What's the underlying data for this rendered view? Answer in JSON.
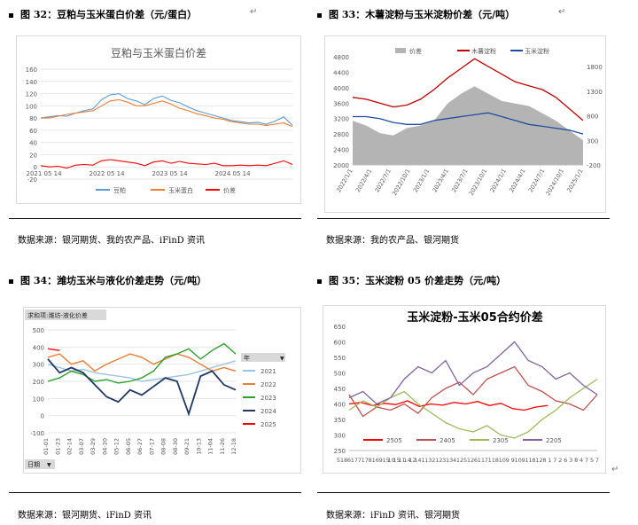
{
  "fig32": {
    "caption": "图 32：豆粕与玉米蛋白价差（元/蛋白）",
    "source": "数据来源：银河期货、我的农产品、iFinD 资讯",
    "chart_data": {
      "type": "line",
      "title": "豆粕与玉米蛋白价差",
      "ylim": [
        -20,
        160
      ],
      "yticks": [
        "160",
        "140",
        "120",
        "100",
        "80",
        "60",
        "40",
        "20",
        "0",
        "-20"
      ],
      "x_ticks": [
        "2021 05 14",
        "2022 05 14",
        "2023 05 14",
        "2024 05 14"
      ],
      "series": [
        {
          "name": "豆粕",
          "color": "#5b9bd5",
          "values": [
            80,
            82,
            84,
            83,
            88,
            92,
            95,
            110,
            118,
            120,
            112,
            108,
            102,
            112,
            116,
            109,
            105,
            98,
            92,
            88,
            84,
            80,
            76,
            74,
            72,
            73,
            70,
            75,
            82,
            68
          ]
        },
        {
          "name": "玉米蛋白",
          "color": "#ed7d31",
          "values": [
            80,
            80,
            83,
            86,
            88,
            90,
            92,
            100,
            108,
            110,
            106,
            100,
            100,
            104,
            108,
            103,
            96,
            92,
            87,
            84,
            80,
            78,
            74,
            72,
            70,
            70,
            68,
            70,
            72,
            66
          ]
        },
        {
          "name": "价差",
          "color": "#ff0000",
          "values": [
            2,
            0,
            1,
            -2,
            3,
            4,
            3,
            10,
            12,
            10,
            8,
            6,
            2,
            8,
            10,
            6,
            9,
            6,
            5,
            4,
            6,
            2,
            2,
            3,
            2,
            3,
            2,
            6,
            10,
            4
          ]
        }
      ]
    }
  },
  "fig33": {
    "caption": "图 33：木薯淀粉与玉米淀粉价差（元/吨）",
    "source": "数据来源：我的农产品、银河期货",
    "chart_data": {
      "type": "line",
      "legend": [
        "价差",
        "木薯淀粉",
        "玉米淀粉"
      ],
      "left_ylim": [
        2000,
        4800
      ],
      "left_ticks": [
        "4800",
        "4400",
        "4000",
        "3600",
        "3200",
        "2800",
        "2400",
        "2000"
      ],
      "right_ylim": [
        -200,
        2000
      ],
      "right_ticks": [
        "1800",
        "1300",
        "800",
        "300",
        "-200"
      ],
      "x_ticks": [
        "2022/1/1",
        "2022/4/1",
        "2022/7/1",
        "2022/10/1",
        "2023/1/1",
        "2023/4/1",
        "2023/7/1",
        "2023/10/1",
        "2024/1/1",
        "2024/4/1",
        "2024/7/1",
        "2024/10/1",
        "2025/1/1"
      ],
      "series": [
        {
          "name": "价差",
          "color": "#b4b4b4",
          "values": [
            700,
            600,
            450,
            400,
            550,
            600,
            700,
            1050,
            1250,
            1400,
            1250,
            1100,
            1050,
            1000,
            850,
            700,
            500,
            300
          ]
        },
        {
          "name": "木薯淀粉",
          "color": "#c00000",
          "values": [
            3750,
            3700,
            3600,
            3500,
            3550,
            3700,
            3950,
            4250,
            4500,
            4750,
            4550,
            4350,
            4150,
            4050,
            3950,
            3750,
            3450,
            3150
          ]
        },
        {
          "name": "玉米淀粉",
          "color": "#1f4e9e",
          "values": [
            3250,
            3250,
            3200,
            3100,
            3050,
            3050,
            3150,
            3200,
            3250,
            3300,
            3350,
            3250,
            3150,
            3050,
            3000,
            2950,
            2900,
            2800
          ]
        }
      ]
    }
  },
  "fig34": {
    "caption": "图 34：潍坊玉米与液化价差走势（元/吨）",
    "source": "数据来源：银河期货、iFinD 资讯",
    "chart_data": {
      "type": "line",
      "pivot_label": "求和项:潍坊-液化价差",
      "filter_year": "年",
      "filter_date": "日期",
      "ylim": [
        -100,
        500
      ],
      "yticks": [
        "500",
        "400",
        "300",
        "200",
        "100",
        "0",
        "-100"
      ],
      "x_ticks": [
        "01-01",
        "01-23",
        "02-14",
        "03-07",
        "03-29",
        "04-20",
        "05-12",
        "06-05",
        "06-27",
        "07-17",
        "08-08",
        "08-30",
        "09-21",
        "10-13",
        "11-04",
        "11-26",
        "12-18"
      ],
      "series": [
        {
          "name": "2021",
          "color": "#9dc3e6",
          "values": [
            300,
            280,
            260,
            270,
            250,
            240,
            230,
            220,
            200,
            210,
            220,
            230,
            240,
            260,
            280,
            300,
            320
          ]
        },
        {
          "name": "2022",
          "color": "#ed7d31",
          "values": [
            340,
            360,
            300,
            320,
            260,
            300,
            330,
            360,
            340,
            300,
            330,
            360,
            340,
            300,
            260,
            280,
            260
          ]
        },
        {
          "name": "2023",
          "color": "#2ca02c",
          "values": [
            200,
            220,
            260,
            240,
            200,
            210,
            190,
            200,
            220,
            260,
            340,
            360,
            390,
            330,
            380,
            420,
            360
          ]
        },
        {
          "name": "2024",
          "color": "#1f3864",
          "values": [
            330,
            250,
            280,
            250,
            180,
            110,
            80,
            150,
            120,
            170,
            220,
            200,
            10,
            230,
            260,
            180,
            150
          ]
        },
        {
          "name": "2025",
          "color": "#ff0000",
          "values": [
            390,
            380
          ]
        }
      ]
    }
  },
  "fig35": {
    "caption": "图 35：玉米淀粉 05 价差走势（元/吨）",
    "source": "数据来源：iFinD 资讯、银河期货",
    "chart_data": {
      "type": "line",
      "title": "玉米淀粉-玉米05合约价差",
      "ylim": [
        250,
        650
      ],
      "yticks": [
        "650",
        "600",
        "550",
        "500",
        "450",
        "400",
        "350",
        "300",
        "250"
      ],
      "x_ticks": [
        "5 18",
        "6 17",
        "7 17",
        "8 16",
        "9 15",
        "10 15",
        "11 14",
        "12 14",
        "1 13",
        "2 12",
        "3 13",
        "4 12",
        "5 12",
        "6 11",
        "7 11",
        "8 10",
        "9 9",
        "10 9",
        "11 8",
        "12 8",
        "1 7",
        "2 6",
        "3 8",
        "4 7",
        "5 7"
      ],
      "x_tick_labels": [
        "5",
        "18",
        "6",
        "17",
        "7",
        "17",
        "8",
        "16",
        "9",
        "15",
        "10",
        "15",
        "11",
        "14",
        "12",
        "14",
        "1",
        "13",
        "2",
        "12",
        "3",
        "13",
        "4",
        "12",
        "5",
        "12",
        "6",
        "11",
        "7",
        "11",
        "8",
        "10",
        "9",
        "9",
        "10",
        "9",
        "11",
        "8",
        "12",
        "8",
        "1",
        "7",
        "2",
        "6",
        "3",
        "8",
        "4",
        "7",
        "5",
        "7"
      ],
      "series": [
        {
          "name": "2505",
          "color": "#ff0000",
          "values": [
            400,
            405,
            395,
            402,
            398,
            410,
            392,
            400,
            396,
            405,
            400,
            408,
            395,
            402,
            385,
            380,
            390,
            395
          ]
        },
        {
          "name": "2405",
          "color": "#c0504d",
          "values": [
            430,
            360,
            390,
            380,
            400,
            370,
            420,
            450,
            470,
            430,
            480,
            500,
            520,
            460,
            440,
            410,
            400,
            380,
            430
          ]
        },
        {
          "name": "2305",
          "color": "#9bbb59",
          "values": [
            380,
            410,
            390,
            420,
            440,
            400,
            370,
            340,
            320,
            310,
            330,
            300,
            290,
            310,
            350,
            380,
            420,
            450,
            480
          ]
        },
        {
          "name": "2205",
          "color": "#8064a2",
          "values": [
            420,
            440,
            400,
            420,
            480,
            520,
            500,
            540,
            460,
            500,
            520,
            560,
            600,
            540,
            520,
            480,
            500,
            460,
            430
          ]
        }
      ]
    }
  }
}
